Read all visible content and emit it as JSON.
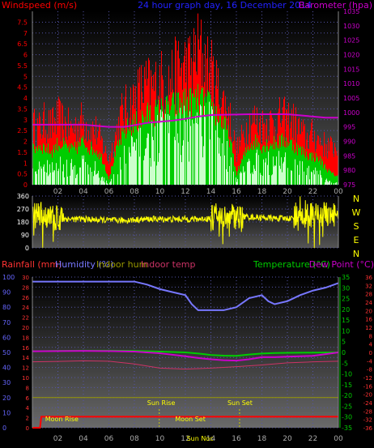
{
  "colors": {
    "windspeed": "#ff0000",
    "gust": "#ff0000",
    "avg": "#00cc00",
    "lull": "#ccffcc",
    "barometer": "#cc00cc",
    "direction": "#ffff00",
    "humidity": "#7777ff",
    "rainfall": "#ff0000",
    "temperature": "#00cc00",
    "dewpoint": "#cc00cc",
    "indoor_temp": "#cc3366",
    "indoor_hum": "#999900",
    "title": "#2222ff",
    "axis_left_top": "#ff0000",
    "axis_right_top": "#cc00cc",
    "axis_left_bottom": "#6666ff",
    "axis_left_bottom_inner": "#ff3333",
    "axis_right_bottom_inner": "#00cc00",
    "axis_right_bottom_outer": "#ff3333"
  },
  "chart_data": [
    {
      "type": "line",
      "name": "wind-barometer",
      "title": "24 hour graph day, 16 December 2014",
      "left_label": "Windspeed (m/s)",
      "right_label": "Barometer (hpa)",
      "x_ticks": [
        "02",
        "04",
        "06",
        "08",
        "10",
        "12",
        "14",
        "16",
        "18",
        "20",
        "22",
        "00"
      ],
      "y_left": {
        "ticks": [
          "0",
          "0.5",
          "1",
          "1.5",
          "2",
          "2.5",
          "3",
          "3.5",
          "4",
          "4.5",
          "5",
          "5.5",
          "6",
          "6.5",
          "7",
          "7.5"
        ],
        "range": [
          0,
          8
        ]
      },
      "y_right": {
        "ticks": [
          "975",
          "980",
          "985",
          "990",
          "995",
          "1000",
          "1005",
          "1010",
          "1015",
          "1020",
          "1025",
          "1030",
          "1035"
        ],
        "range": [
          975,
          1035
        ]
      },
      "x_range": [
        0,
        24
      ],
      "series": [
        {
          "kind": "windspeed_gust",
          "x": [
            0,
            0.5,
            1,
            1.5,
            2,
            2.5,
            3,
            3.5,
            4,
            4.5,
            5,
            5.5,
            6,
            6.5,
            7,
            7.5,
            8,
            8.5,
            9,
            9.5,
            10,
            10.5,
            11,
            11.5,
            12,
            12.5,
            13,
            13.5,
            14,
            14.5,
            15,
            15.5,
            16,
            16.5,
            17,
            17.5,
            18,
            18.5,
            19,
            19.5,
            20,
            20.5,
            21,
            21.5,
            22,
            22.5,
            23,
            23.5,
            24
          ],
          "values": [
            3.2,
            3.0,
            3.4,
            3.1,
            3.6,
            3.3,
            3.0,
            3.2,
            3.5,
            3.0,
            2.9,
            2.2,
            1.3,
            2.6,
            3.8,
            4.2,
            4.6,
            5.1,
            5.3,
            5.2,
            5.6,
            5.4,
            5.8,
            6.2,
            6.4,
            6.3,
            7.4,
            6.6,
            6.0,
            5.2,
            4.4,
            3.6,
            1.8,
            2.6,
            3.4,
            3.5,
            3.2,
            3.4,
            3.3,
            3.6,
            3.5,
            3.4,
            2.9,
            2.5,
            2.7,
            2.4,
            2.1,
            2.0,
            2.2
          ]
        },
        {
          "kind": "windspeed_avg",
          "x": [
            0,
            0.5,
            1,
            1.5,
            2,
            2.5,
            3,
            3.5,
            4,
            4.5,
            5,
            5.5,
            6,
            6.5,
            7,
            7.5,
            8,
            8.5,
            9,
            9.5,
            10,
            10.5,
            11,
            11.5,
            12,
            12.5,
            13,
            13.5,
            14,
            14.5,
            15,
            15.5,
            16,
            16.5,
            17,
            17.5,
            18,
            18.5,
            19,
            19.5,
            20,
            20.5,
            21,
            21.5,
            22,
            22.5,
            23,
            23.5,
            24
          ],
          "values": [
            1.6,
            1.8,
            1.7,
            1.5,
            1.9,
            1.8,
            1.6,
            1.7,
            2.0,
            1.7,
            1.6,
            1.2,
            0.3,
            1.4,
            2.2,
            2.6,
            2.8,
            3.0,
            3.2,
            3.3,
            3.4,
            3.5,
            3.6,
            3.7,
            3.8,
            3.8,
            3.9,
            3.8,
            3.6,
            3.2,
            2.8,
            2.1,
            0.5,
            1.2,
            1.8,
            2.0,
            1.8,
            1.9,
            1.9,
            2.0,
            2.0,
            1.8,
            1.6,
            1.4,
            1.3,
            1.2,
            0.8,
            0.5,
            0.4
          ]
        },
        {
          "kind": "windspeed_lull",
          "x": [
            0,
            0.5,
            1,
            1.5,
            2,
            2.5,
            3,
            3.5,
            4,
            4.5,
            5,
            5.5,
            6,
            6.5,
            7,
            7.5,
            8,
            8.5,
            9,
            9.5,
            10,
            10.5,
            11,
            11.5,
            12,
            12.5,
            13,
            13.5,
            14,
            14.5,
            15,
            15.5,
            16,
            16.5,
            17,
            17.5,
            18,
            18.5,
            19,
            19.5,
            20,
            20.5,
            21,
            21.5,
            22,
            22.5,
            23,
            23.5,
            24
          ],
          "values": [
            0.8,
            1.0,
            1.0,
            0.9,
            1.2,
            1.1,
            1.0,
            1.0,
            1.3,
            1.0,
            0.9,
            0.5,
            0.0,
            0.7,
            1.5,
            1.8,
            2.1,
            2.3,
            2.5,
            2.7,
            2.9,
            3.0,
            3.1,
            3.2,
            3.3,
            3.4,
            3.5,
            3.4,
            3.2,
            2.7,
            2.3,
            1.6,
            0.2,
            0.7,
            1.2,
            1.4,
            1.2,
            1.3,
            1.4,
            1.4,
            1.4,
            1.2,
            1.0,
            0.8,
            0.7,
            0.6,
            0.3,
            0.1,
            0.1
          ]
        },
        {
          "kind": "barometer",
          "axis": "right",
          "x": [
            0,
            2,
            4,
            6,
            7.2,
            8,
            9,
            11,
            12,
            13,
            14,
            15,
            16,
            17,
            18,
            19,
            20,
            21,
            22,
            23,
            24
          ],
          "values": [
            995.8,
            995.8,
            995.8,
            995.0,
            995.0,
            995.6,
            996.4,
            997.2,
            997.8,
            998.6,
            999.1,
            999.2,
            999.3,
            999.4,
            999.4,
            999.4,
            999.4,
            999.0,
            998.6,
            998.2,
            998.2
          ]
        }
      ]
    },
    {
      "type": "line",
      "name": "wind-direction",
      "x_ticks": [
        "02",
        "04",
        "06",
        "08",
        "10",
        "12",
        "14",
        "16",
        "18",
        "20",
        "22",
        "00"
      ],
      "y_ticks": [
        "0",
        "90",
        "180",
        "270",
        "360"
      ],
      "y_range": [
        0,
        360
      ],
      "compass": [
        "N",
        "W",
        "S",
        "E",
        "N"
      ],
      "x_range": [
        0,
        24
      ],
      "series": [
        {
          "kind": "direction",
          "x": [
            0,
            1,
            2,
            3,
            4,
            5,
            6,
            7,
            8,
            9,
            10,
            11,
            12,
            13,
            14,
            15,
            16,
            17,
            18,
            19,
            20,
            21,
            22,
            23,
            24
          ],
          "values": [
            230,
            215,
            205,
            200,
            200,
            195,
            192,
            190,
            195,
            200,
            200,
            200,
            200,
            200,
            205,
            210,
            220,
            215,
            210,
            205,
            205,
            210,
            225,
            230,
            230
          ]
        }
      ]
    },
    {
      "type": "line",
      "name": "temp-humidity-rain",
      "labels": {
        "rainfall": "Rainfall (mm)",
        "humidity": "Humidity (%)",
        "indoor_hum": "Indoor hum",
        "indoor_temp": "Indoor temp",
        "temperature": "Temperature (°C)",
        "dewpoint": "Dew Point (°C)"
      },
      "x_ticks": [
        "02",
        "04",
        "06",
        "08",
        "10",
        "12",
        "14",
        "16",
        "18",
        "20",
        "22",
        "00"
      ],
      "axis_humidity": {
        "ticks": [
          "0",
          "10",
          "20",
          "30",
          "40",
          "50",
          "60",
          "70",
          "80",
          "90",
          "100"
        ],
        "range": [
          0,
          100
        ]
      },
      "axis_rain": {
        "ticks": [
          "0",
          "2",
          "4",
          "6",
          "8",
          "10",
          "12",
          "14",
          "16",
          "18",
          "20",
          "22",
          "24",
          "26",
          "28",
          "30"
        ],
        "range": [
          0,
          30
        ]
      },
      "axis_temp": {
        "ticks": [
          "-35",
          "-30",
          "-25",
          "-20",
          "-15",
          "-10",
          "-5",
          "0",
          "5",
          "10",
          "15",
          "20",
          "25",
          "30",
          "35"
        ],
        "range": [
          -35,
          35
        ]
      },
      "axis_indoor": {
        "ticks": [
          "-36",
          "-32",
          "-28",
          "-24",
          "-20",
          "-16",
          "-12",
          "-8",
          "-4",
          "0",
          "4",
          "8",
          "12",
          "16",
          "20",
          "24",
          "28",
          "32",
          "36"
        ],
        "range": [
          -36,
          36
        ]
      },
      "x_range": [
        0,
        24
      ],
      "events": [
        {
          "label": "Sun Rise",
          "x": 9.0
        },
        {
          "label": "Sun Set",
          "x": 15.3
        },
        {
          "label": "Moon Rise",
          "x": 1.0
        },
        {
          "label": "Moon Set",
          "x": 11.2
        },
        {
          "label": "Sun Noc",
          "x": 12.1
        }
      ],
      "series": [
        {
          "kind": "humidity",
          "x": [
            0,
            2,
            4,
            6,
            7,
            8,
            9,
            10,
            11,
            12,
            12.5,
            13,
            14,
            15,
            16,
            17,
            18,
            18.5,
            19,
            20,
            21,
            22,
            23,
            24
          ],
          "values": [
            97,
            97,
            97,
            97,
            97,
            97,
            95,
            92,
            90,
            88,
            82,
            78,
            78,
            78,
            80,
            86,
            88,
            84,
            82,
            84,
            88,
            91,
            93,
            96
          ]
        },
        {
          "kind": "temperature",
          "x": [
            0,
            2,
            4,
            6,
            8,
            10,
            12,
            13,
            14,
            15,
            16,
            17,
            18,
            19,
            20,
            22,
            24
          ],
          "values": [
            0.5,
            0.7,
            0.8,
            0.8,
            0.7,
            0.4,
            0.0,
            -0.5,
            -1.2,
            -1.5,
            -1.6,
            -1.0,
            -0.5,
            -0.3,
            -0.2,
            -0.1,
            0.0
          ]
        },
        {
          "kind": "dewpoint",
          "x": [
            0,
            2,
            4,
            6,
            8,
            10,
            12,
            13,
            14,
            15,
            16,
            17,
            18,
            19,
            20,
            22,
            24
          ],
          "values": [
            0.5,
            0.6,
            0.7,
            0.6,
            0.4,
            -0.4,
            -1.8,
            -2.6,
            -3.2,
            -3.6,
            -3.8,
            -3.2,
            -2.2,
            -2.2,
            -2.0,
            -1.6,
            0.0
          ]
        },
        {
          "kind": "indoor_temp",
          "x": [
            0,
            2,
            4,
            6,
            8,
            10,
            12,
            14,
            16,
            18,
            20,
            22,
            24
          ],
          "values": [
            -4.5,
            -4.3,
            -4.0,
            -4.2,
            -5.5,
            -7.5,
            -8.0,
            -7.5,
            -6.8,
            -6.0,
            -5.0,
            -4.5,
            -4.2
          ]
        },
        {
          "kind": "indoor_hum",
          "x": [
            0,
            24
          ],
          "values": [
            20,
            20
          ]
        },
        {
          "kind": "rainfall",
          "x": [
            0,
            0.6,
            0.7,
            24
          ],
          "values": [
            0,
            0,
            2.2,
            2.2
          ]
        }
      ]
    }
  ]
}
